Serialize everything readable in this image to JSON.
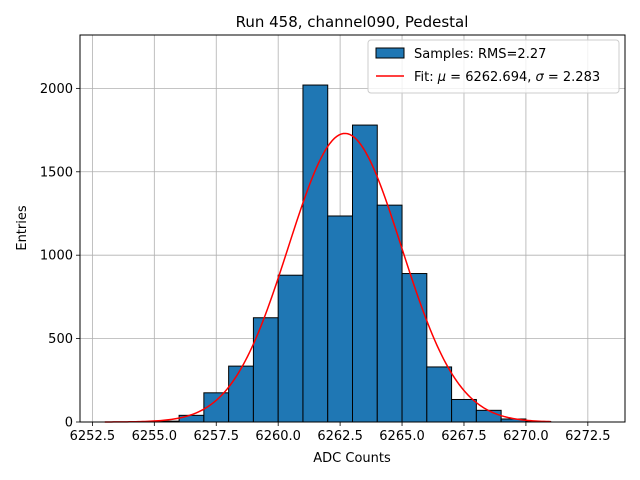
{
  "chart_data": {
    "type": "bar",
    "title": "Run 458, channel090, Pedestal",
    "xlabel": "ADC Counts",
    "ylabel": "Entries",
    "xlim": [
      6252.0,
      6274.0
    ],
    "ylim": [
      0,
      2320
    ],
    "grid": true,
    "legend_placement": "top-right",
    "x_ticks": [
      6252.5,
      6255.0,
      6257.5,
      6260.0,
      6262.5,
      6265.0,
      6267.5,
      6270.0,
      6272.5
    ],
    "x_tick_labels": [
      "6252.5",
      "6255.0",
      "6257.5",
      "6260.0",
      "6262.5",
      "6265.0",
      "6267.5",
      "6270.0",
      "6272.5"
    ],
    "y_ticks": [
      0,
      500,
      1000,
      1500,
      2000
    ],
    "y_tick_labels": [
      "0",
      "500",
      "1000",
      "1500",
      "2000"
    ],
    "histogram": {
      "name": "Samples: RMS=2.27",
      "color": "#1f77b4",
      "edge_color": "#000000",
      "bin_edges": [
        6253,
        6254,
        6255,
        6256,
        6257,
        6258,
        6259,
        6260,
        6261,
        6262,
        6263,
        6264,
        6265,
        6266,
        6267,
        6268,
        6269,
        6270,
        6271
      ],
      "counts": [
        0,
        2,
        5,
        40,
        175,
        335,
        625,
        880,
        2020,
        1235,
        1780,
        1300,
        890,
        330,
        135,
        70,
        18,
        3
      ]
    },
    "fit": {
      "name_prefix": "Fit: ",
      "name_mu": "μ",
      "name_mid": " = 6262.694, ",
      "name_sigma": "σ",
      "name_suffix": " = 2.283",
      "color": "#ff0000",
      "mu": 6262.694,
      "sigma": 2.283,
      "amplitude": 1730,
      "x_range": [
        6253,
        6271
      ]
    }
  }
}
